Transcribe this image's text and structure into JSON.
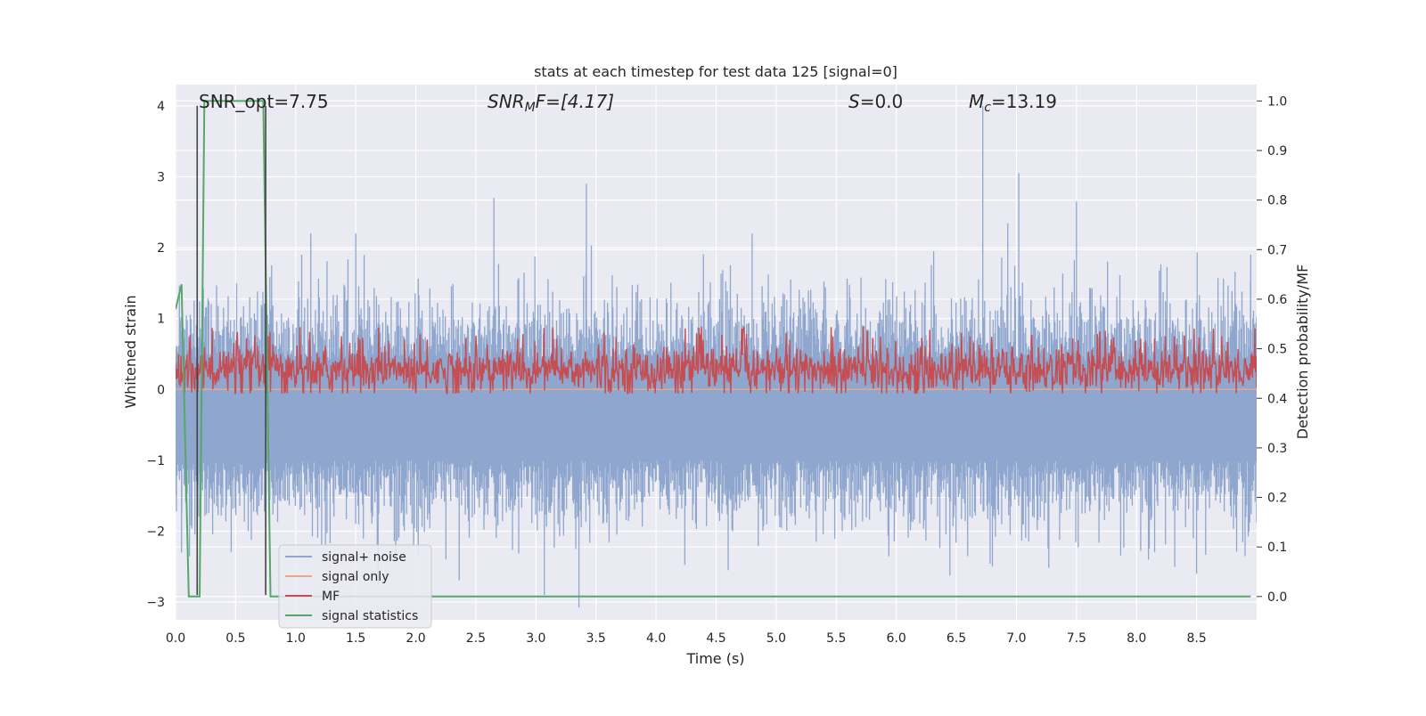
{
  "chart_data": {
    "type": "line",
    "title": "stats at each timestep for test data 125 [signal=0]",
    "xlabel": "Time (s)",
    "ylabel_left": "Whitened strain",
    "ylabel_right": "Detection probability/MF",
    "xlim": [
      0.0,
      9.0
    ],
    "ylim_left": [
      -3.25,
      4.3
    ],
    "ylim_right": [
      -0.047,
      1.033
    ],
    "x_ticks": [
      0.0,
      0.5,
      1.0,
      1.5,
      2.0,
      2.5,
      3.0,
      3.5,
      4.0,
      4.5,
      5.0,
      5.5,
      6.0,
      6.5,
      7.0,
      7.5,
      8.0,
      8.5
    ],
    "x_tick_labels": [
      "0.0",
      "0.5",
      "1.0",
      "1.5",
      "2.0",
      "2.5",
      "3.0",
      "3.5",
      "4.0",
      "4.5",
      "5.0",
      "5.5",
      "6.0",
      "6.5",
      "7.0",
      "7.5",
      "8.0",
      "8.5"
    ],
    "y_left_ticks": [
      4,
      3,
      2,
      1,
      0,
      -1,
      -2,
      -3
    ],
    "y_left_tick_labels": [
      "4",
      "3",
      "2",
      "1",
      "0",
      "−1",
      "−2",
      "−3"
    ],
    "y_right_ticks": [
      1.0,
      0.9,
      0.8,
      0.7,
      0.6,
      0.5,
      0.4,
      0.3,
      0.2,
      0.1,
      0.0
    ],
    "y_right_tick_labels": [
      "1.0",
      "0.9",
      "0.8",
      "0.7",
      "0.6",
      "0.5",
      "0.4",
      "0.3",
      "0.2",
      "0.1",
      "0.0"
    ],
    "grid": true,
    "legend_position": "lower-left",
    "legend": [
      {
        "label": "signal+ noise",
        "color": "#8fa6cf"
      },
      {
        "label": "signal only",
        "color": "#e8a88c"
      },
      {
        "label": "MF",
        "color": "#c44e52"
      },
      {
        "label": "signal statistics",
        "color": "#55a868"
      }
    ],
    "annotations": {
      "snr_opt": "SNR_opt=7.75",
      "snr_mf_base": "SNR",
      "snr_mf_sub": "M",
      "snr_mf_rest": "F=[4.17]",
      "s_var": "S",
      "s_rest": "=0.0",
      "mc_var": "M",
      "mc_sub": "c",
      "mc_rest": "=13.19"
    },
    "series": [
      {
        "name": "signal+ noise",
        "axis": "left",
        "style": "dense-noise",
        "color": "#8fa6cf",
        "center": -0.3,
        "typical_upper": 1.25,
        "typical_lower": -1.3,
        "extremes": [
          [
            0.05,
            -2.3
          ],
          [
            0.8,
            1.75
          ],
          [
            1.05,
            1.9
          ],
          [
            1.5,
            2.2
          ],
          [
            2.25,
            -2.4
          ],
          [
            2.65,
            2.7
          ],
          [
            3.07,
            -2.9
          ],
          [
            3.42,
            2.9
          ],
          [
            4.6,
            -2.55
          ],
          [
            4.8,
            2.2
          ],
          [
            5.55,
            -2.0
          ],
          [
            6.72,
            4.0
          ],
          [
            6.8,
            -2.5
          ],
          [
            7.02,
            3.05
          ],
          [
            7.5,
            2.65
          ],
          [
            8.5,
            -2.6
          ],
          [
            8.95,
            1.9
          ]
        ]
      },
      {
        "name": "signal only",
        "axis": "left",
        "style": "flat",
        "color": "#e8a88c",
        "value": 0.0
      },
      {
        "name": "MF",
        "axis": "right",
        "style": "dense-band",
        "color": "#c44e52",
        "typical_lower": 0.425,
        "typical_upper": 0.49,
        "min": 0.41,
        "max": 0.545
      },
      {
        "name": "signal statistics",
        "axis": "right",
        "style": "line",
        "color": "#55a868",
        "x": [
          0.0,
          0.05,
          0.11,
          0.2,
          0.24,
          0.73,
          0.79,
          8.95
        ],
        "y": [
          0.58,
          0.63,
          0.0,
          0.0,
          1.0,
          1.0,
          0.0,
          0.0
        ]
      }
    ],
    "vertical_lines": [
      {
        "x": 0.18,
        "color": "#444444"
      },
      {
        "x": 0.75,
        "color": "#444444"
      }
    ]
  }
}
